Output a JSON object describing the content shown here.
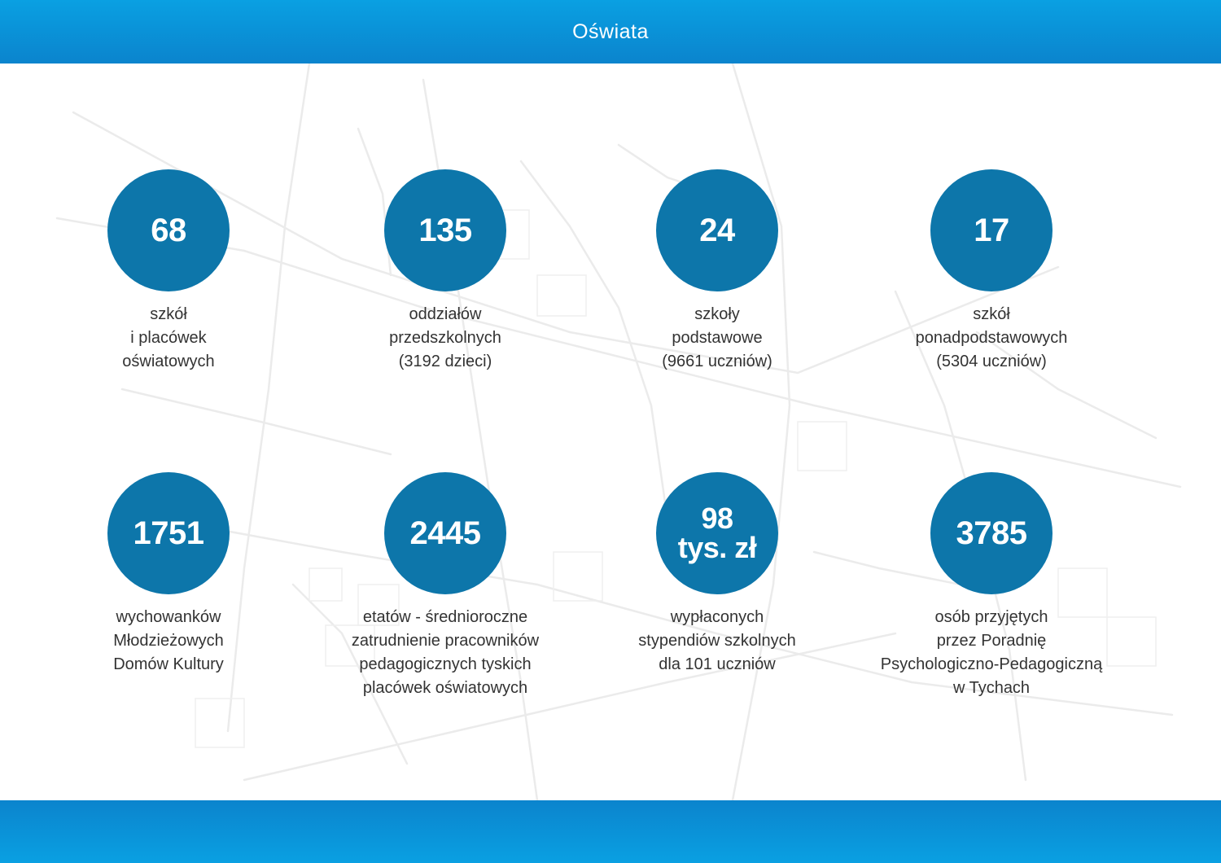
{
  "header": {
    "title": "Oświata"
  },
  "colors": {
    "header": "#0b84cd",
    "circle": "#0d76aa",
    "map_lines": "#ebebeb",
    "text": "#333333"
  },
  "stats": [
    {
      "value": "68",
      "label": "szkół\ni placówek\noświatowych"
    },
    {
      "value": "135",
      "label": "oddziałów\nprzedszkolnych\n(3192 dzieci)"
    },
    {
      "value": "24",
      "label": "szkoły\npodstawowe\n(9661 uczniów)"
    },
    {
      "value": "17",
      "label": "szkół\nponadpodstawowych\n(5304 uczniów)"
    },
    {
      "value": "1751",
      "label": "wychowanków\nMłodzieżowych\nDomów Kultury"
    },
    {
      "value": "2445",
      "label": "etatów  - średnioroczne\nzatrudnienie pracowników\npedagogicznych tyskich\nplacówek oświatowych"
    },
    {
      "value": "98\ntys. zł",
      "label": "wypłaconych\nstypendiów szkolnych\ndla 101 uczniów"
    },
    {
      "value": "3785",
      "label": "osób przyjętych\nprzez Poradnię\nPsychologiczno-Pedagogiczną\nw Tychach"
    }
  ]
}
